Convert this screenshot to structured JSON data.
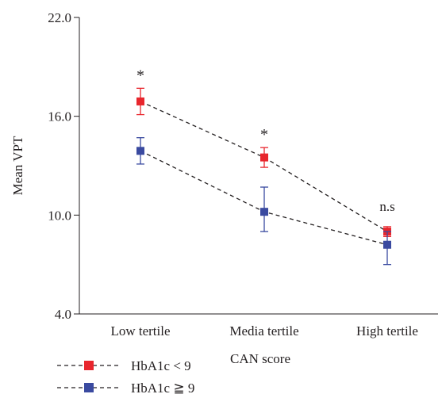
{
  "chart_data": {
    "type": "line",
    "categories": [
      "Low tertile",
      "Media tertile",
      "High tertile"
    ],
    "xlabel": "CAN score",
    "ylabel": "Mean VPT",
    "ylim": [
      4.0,
      22.0
    ],
    "yticks": [
      4.0,
      10.0,
      16.0,
      22.0
    ],
    "ytick_labels": [
      "4.0",
      "10.0",
      "16.0",
      "22.0"
    ],
    "grid": false,
    "legend_position": "bottom-left",
    "series": [
      {
        "name": "HbA1c < 9",
        "color": "#e8262d",
        "line_style": "dashed",
        "marker": "square",
        "values": [
          16.9,
          13.5,
          9.0
        ],
        "err_low": [
          0.8,
          0.6,
          0.3
        ],
        "err_high": [
          0.8,
          0.6,
          0.3
        ]
      },
      {
        "name": "HbA1c ≧ 9",
        "color": "#3a4aa0",
        "line_style": "dashed",
        "marker": "square",
        "values": [
          13.9,
          10.2,
          8.2
        ],
        "err_low": [
          0.8,
          1.2,
          1.2
        ],
        "err_high": [
          0.8,
          1.5,
          0.8
        ]
      }
    ],
    "annotations": [
      {
        "category_index": 0,
        "text": "*"
      },
      {
        "category_index": 1,
        "text": "*"
      },
      {
        "category_index": 2,
        "text": "n.s"
      }
    ]
  }
}
